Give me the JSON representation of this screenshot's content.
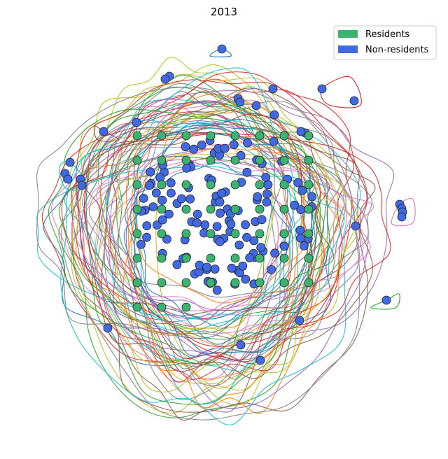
{
  "chart_data": {
    "type": "scatter",
    "title": "2013",
    "xlabel": "",
    "ylabel": "",
    "axes_visible": false,
    "grid": false,
    "legend": {
      "placement": "top-right",
      "entries": [
        {
          "label": "Residents",
          "color": "#3cb371"
        },
        {
          "label": "Non-residents",
          "color": "#4169e1"
        }
      ]
    },
    "residents_grid": {
      "color": "#3cb371",
      "columns": [
        0,
        1,
        2,
        3,
        4,
        5,
        6,
        7
      ],
      "rows": [
        0,
        1,
        2,
        3,
        4,
        5,
        6,
        7
      ],
      "row_lengths": [
        8,
        8,
        8,
        8,
        8,
        8,
        8,
        3
      ]
    },
    "non_residents": {
      "color": "#4169e1",
      "count": 150
    },
    "hull_outlines": {
      "count": 60,
      "palette": [
        "#1f77b4",
        "#ff7f0e",
        "#2ca02c",
        "#d62728",
        "#9467bd",
        "#8c564b",
        "#e377c2",
        "#7f7f7f",
        "#bcbd22",
        "#17becf"
      ]
    }
  }
}
